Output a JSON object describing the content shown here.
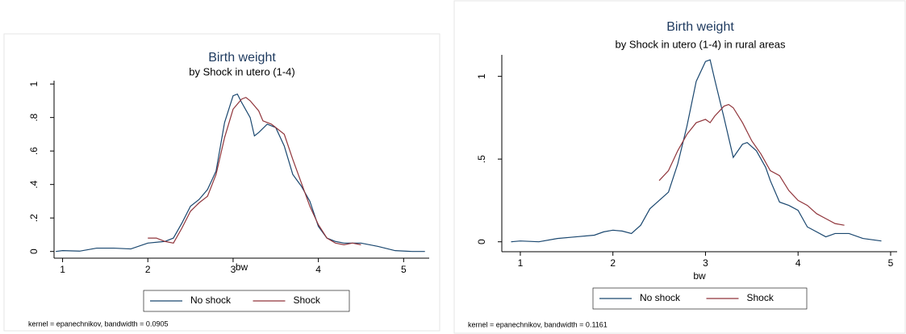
{
  "chart_data": [
    {
      "type": "line",
      "title": "Birth weight",
      "subtitle": "by Shock in utero (1-4)",
      "x_label": "bw",
      "note": "kernel = epanechnikov, bandwidth = 0.0905",
      "xlim": [
        0.9,
        5.3
      ],
      "ylim": [
        -0.04,
        1.02
      ],
      "xticks": [
        1,
        2,
        3,
        4,
        5
      ],
      "yticks": [
        0,
        {
          "value": 0.2,
          "label": ".2"
        },
        {
          "value": 0.4,
          "label": ".4"
        },
        {
          "value": 0.6,
          "label": ".6"
        },
        {
          "value": 0.8,
          "label": ".8"
        },
        1
      ],
      "series": [
        {
          "name": "No shock",
          "color": "#1a476f",
          "x": [
            0.92,
            1.0,
            1.2,
            1.4,
            1.6,
            1.8,
            2.0,
            2.2,
            2.3,
            2.4,
            2.5,
            2.6,
            2.7,
            2.8,
            2.9,
            3.0,
            3.05,
            3.1,
            3.2,
            3.25,
            3.3,
            3.4,
            3.5,
            3.6,
            3.7,
            3.8,
            3.9,
            4.0,
            4.1,
            4.2,
            4.3,
            4.5,
            4.7,
            4.9,
            5.1,
            5.25
          ],
          "values": [
            0.0,
            0.005,
            0.002,
            0.02,
            0.02,
            0.015,
            0.05,
            0.06,
            0.08,
            0.17,
            0.27,
            0.31,
            0.37,
            0.48,
            0.77,
            0.93,
            0.94,
            0.89,
            0.8,
            0.69,
            0.71,
            0.76,
            0.74,
            0.63,
            0.46,
            0.39,
            0.3,
            0.15,
            0.08,
            0.06,
            0.05,
            0.05,
            0.03,
            0.005,
            0.0,
            0.0
          ]
        },
        {
          "name": "Shock",
          "color": "#90353b",
          "x": [
            2.0,
            2.1,
            2.2,
            2.3,
            2.4,
            2.5,
            2.6,
            2.7,
            2.8,
            2.9,
            3.0,
            3.1,
            3.15,
            3.2,
            3.3,
            3.35,
            3.45,
            3.6,
            3.7,
            3.8,
            3.9,
            4.0,
            4.1,
            4.2,
            4.3,
            4.4,
            4.5
          ],
          "values": [
            0.08,
            0.08,
            0.06,
            0.05,
            0.14,
            0.24,
            0.29,
            0.33,
            0.46,
            0.68,
            0.85,
            0.91,
            0.92,
            0.9,
            0.84,
            0.78,
            0.76,
            0.7,
            0.55,
            0.41,
            0.27,
            0.16,
            0.08,
            0.05,
            0.04,
            0.05,
            0.04
          ]
        }
      ]
    },
    {
      "type": "line",
      "title": "Birth weight",
      "subtitle": "by Shock in utero (1-4) in rural areas",
      "x_label": "bw",
      "note": "kernel = epanechnikov, bandwidth = 0.1161",
      "xlim": [
        0.8,
        5.07
      ],
      "ylim": [
        -0.06,
        1.13
      ],
      "xticks": [
        1,
        2,
        3,
        4,
        5
      ],
      "yticks": [
        0,
        {
          "value": 0.5,
          "label": ".5"
        },
        1
      ],
      "series": [
        {
          "name": "No shock",
          "color": "#1a476f",
          "x": [
            0.9,
            1.0,
            1.2,
            1.4,
            1.6,
            1.8,
            1.9,
            2.0,
            2.1,
            2.2,
            2.3,
            2.4,
            2.6,
            2.7,
            2.8,
            2.9,
            3.0,
            3.05,
            3.1,
            3.2,
            3.3,
            3.4,
            3.45,
            3.55,
            3.65,
            3.7,
            3.8,
            3.9,
            4.0,
            4.1,
            4.3,
            4.4,
            4.55,
            4.7,
            4.9
          ],
          "values": [
            0.0,
            0.005,
            0.0,
            0.02,
            0.03,
            0.04,
            0.06,
            0.07,
            0.065,
            0.05,
            0.1,
            0.2,
            0.3,
            0.47,
            0.7,
            0.97,
            1.09,
            1.1,
            0.98,
            0.75,
            0.51,
            0.59,
            0.6,
            0.55,
            0.45,
            0.37,
            0.24,
            0.22,
            0.19,
            0.09,
            0.03,
            0.05,
            0.05,
            0.02,
            0.005
          ]
        },
        {
          "name": "Shock",
          "color": "#90353b",
          "x": [
            2.5,
            2.6,
            2.7,
            2.8,
            2.9,
            3.0,
            3.05,
            3.1,
            3.2,
            3.25,
            3.3,
            3.4,
            3.5,
            3.6,
            3.7,
            3.8,
            3.9,
            4.0,
            4.1,
            4.2,
            4.3,
            4.4,
            4.5
          ],
          "values": [
            0.37,
            0.43,
            0.55,
            0.65,
            0.72,
            0.74,
            0.72,
            0.76,
            0.82,
            0.83,
            0.81,
            0.72,
            0.61,
            0.53,
            0.43,
            0.4,
            0.31,
            0.25,
            0.22,
            0.17,
            0.14,
            0.11,
            0.1
          ]
        }
      ]
    }
  ]
}
